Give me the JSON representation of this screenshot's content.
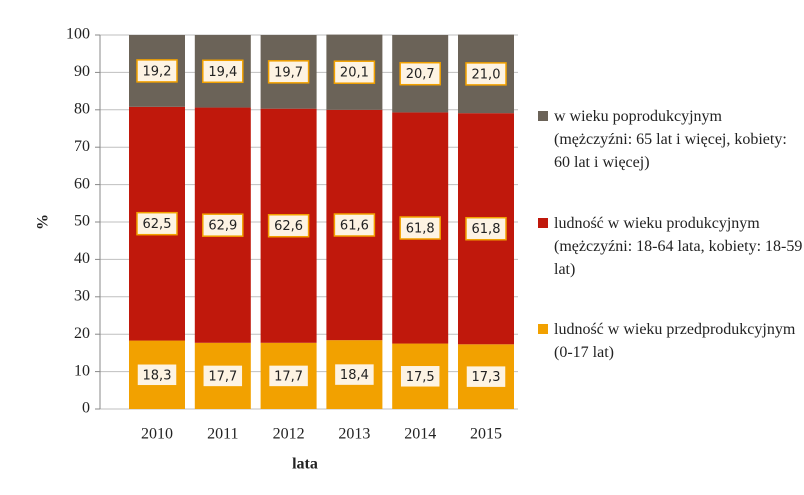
{
  "chart_data": {
    "type": "stacked-bar",
    "categories": [
      "2010",
      "2011",
      "2012",
      "2013",
      "2014",
      "2015"
    ],
    "x_label": "lata",
    "y_label": "%",
    "ylim": [
      0,
      100
    ],
    "yticks": [
      0,
      10,
      20,
      30,
      40,
      50,
      60,
      70,
      80,
      90,
      100
    ],
    "grid": true,
    "series": [
      {
        "name": "ludność w wieku przedprodukcyjnym (0-17 lat)",
        "color": "#f2a100",
        "values": [
          18.3,
          17.7,
          17.7,
          18.4,
          17.5,
          17.3
        ],
        "value_labels": [
          "18,3",
          "17,7",
          "17,7",
          "18,4",
          "17,5",
          "17,3"
        ]
      },
      {
        "name": "ludność w wieku produkcyjnym (mężczyźni: 18-64 lata, kobiety: 18-59 lat)",
        "color": "#c0180c",
        "values": [
          62.5,
          62.9,
          62.6,
          61.6,
          61.8,
          61.8
        ],
        "value_labels": [
          "62,5",
          "62,9",
          "62,6",
          "61,6",
          "61,8",
          "61,8"
        ]
      },
      {
        "name": "w wieku poprodukcyjnym (mężczyźni: 65 lat i więcej, kobiety: 60 lat i więcej)",
        "color": "#6b6358",
        "values": [
          19.2,
          19.4,
          19.7,
          20.1,
          20.7,
          21.0
        ],
        "value_labels": [
          "19,2",
          "19,4",
          "19,7",
          "20,1",
          "20,7",
          "21,0"
        ]
      }
    ]
  }
}
